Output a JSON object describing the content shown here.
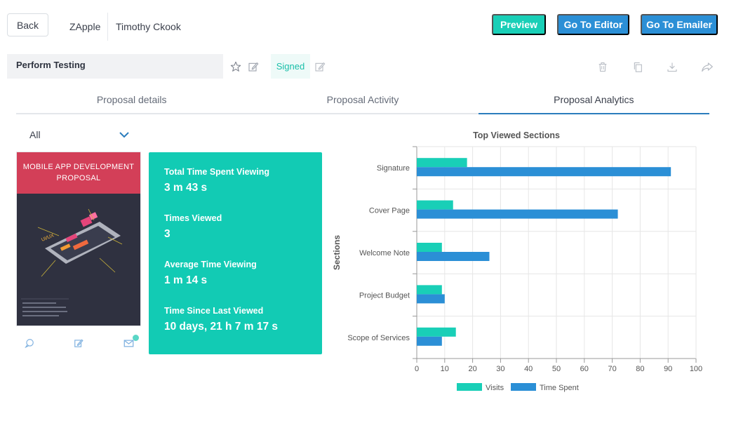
{
  "header": {
    "back_label": "Back",
    "company": "ZApple",
    "client": "Timothy Ckook",
    "preview_label": "Preview",
    "editor_label": "Go To Editor",
    "emailer_label": "Go To Emailer"
  },
  "proposal": {
    "title": "Perform Testing",
    "status": "Signed"
  },
  "tabs": [
    {
      "label": "Proposal details"
    },
    {
      "label": "Proposal Activity"
    },
    {
      "label": "Proposal Analytics"
    }
  ],
  "filter": {
    "selected": "All"
  },
  "thumbnail": {
    "title_line1": "MOBILE APP DEVELOPMENT",
    "title_line2": "PROPOSAL"
  },
  "stats": {
    "total_time_label": "Total Time Spent Viewing",
    "total_time_value": "3 m 43 s",
    "times_viewed_label": "Times Viewed",
    "times_viewed_value": "3",
    "avg_time_label": "Average Time Viewing",
    "avg_time_value": "1 m 14 s",
    "since_last_label": "Time Since Last Viewed",
    "since_last_value": "10 days, 21 h 7 m 17 s"
  },
  "colors": {
    "teal": "#12cbb4",
    "blue": "#2b8fd6",
    "red": "#d33f58"
  },
  "chart_data": {
    "type": "bar",
    "orientation": "horizontal",
    "title": "Top Viewed Sections",
    "ylabel": "Sections",
    "xlabel": "",
    "categories": [
      "Signature",
      "Cover Page",
      "Welcome Note",
      "Project Budget",
      "Scope of Services"
    ],
    "series": [
      {
        "name": "Visits",
        "color": "#19cfb7",
        "values": [
          18,
          13,
          9,
          9,
          14
        ]
      },
      {
        "name": "Time Spent",
        "color": "#2b8fd6",
        "values": [
          91,
          72,
          26,
          10,
          9
        ]
      }
    ],
    "xlim": [
      0,
      100
    ],
    "xticks": [
      0,
      10,
      20,
      30,
      40,
      50,
      60,
      70,
      80,
      90,
      100
    ],
    "legend_position": "bottom",
    "grid": true
  }
}
